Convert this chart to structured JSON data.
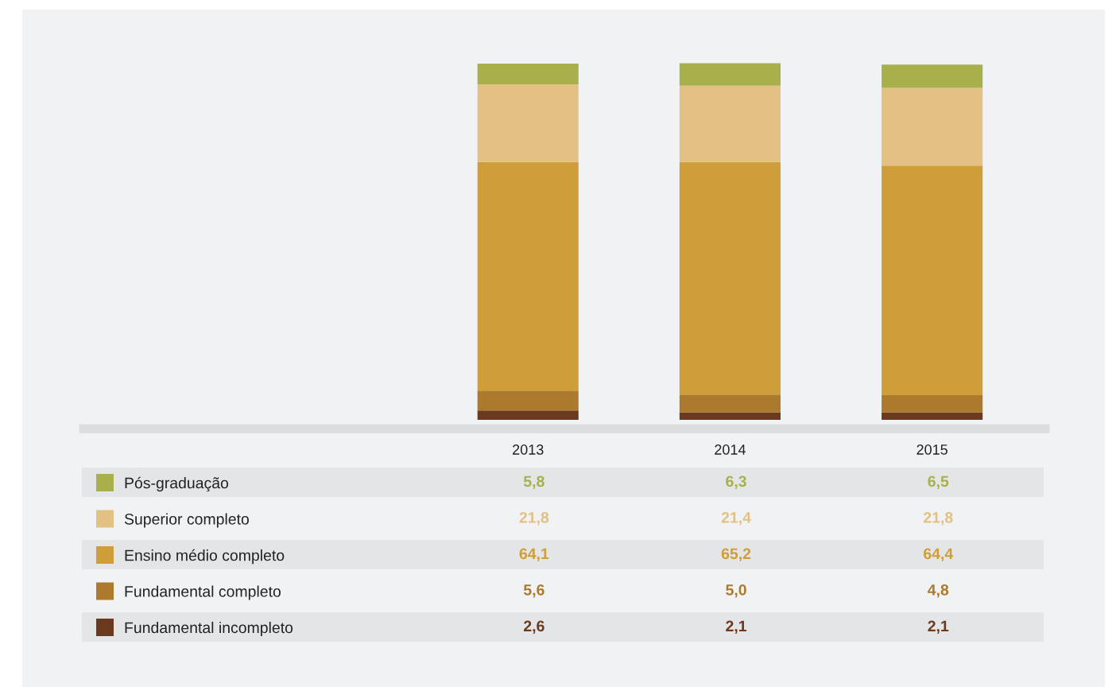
{
  "chart_data": {
    "type": "bar",
    "stacked": true,
    "categories": [
      "2013",
      "2014",
      "2015"
    ],
    "tick_labels": "x",
    "grid": false,
    "legend": "bottom",
    "series": [
      {
        "name": "Fundamental incompleto",
        "color": "#6b3a1e",
        "values": [
          2.6,
          2.1,
          2.1
        ],
        "value_labels": [
          "2,6",
          "2,1",
          "2,1"
        ]
      },
      {
        "name": "Fundamental completo",
        "color": "#ab7a2c",
        "values": [
          5.6,
          5.0,
          4.8
        ],
        "value_labels": [
          "5,6",
          "5,0",
          "4,8"
        ]
      },
      {
        "name": "Ensino médio completo",
        "color": "#cf9e38",
        "values": [
          64.1,
          65.2,
          64.4
        ],
        "value_labels": [
          "64,1",
          "65,2",
          "64,4"
        ]
      },
      {
        "name": "Superior completo",
        "color": "#e3c084",
        "values": [
          21.8,
          21.4,
          21.8
        ],
        "value_labels": [
          "21,8",
          "21,4",
          "21,8"
        ]
      },
      {
        "name": "Pós-graduação",
        "color": "#a8b04c",
        "values": [
          5.8,
          6.3,
          6.5
        ],
        "value_labels": [
          "5,8",
          "6,3",
          "6,5"
        ]
      }
    ]
  }
}
